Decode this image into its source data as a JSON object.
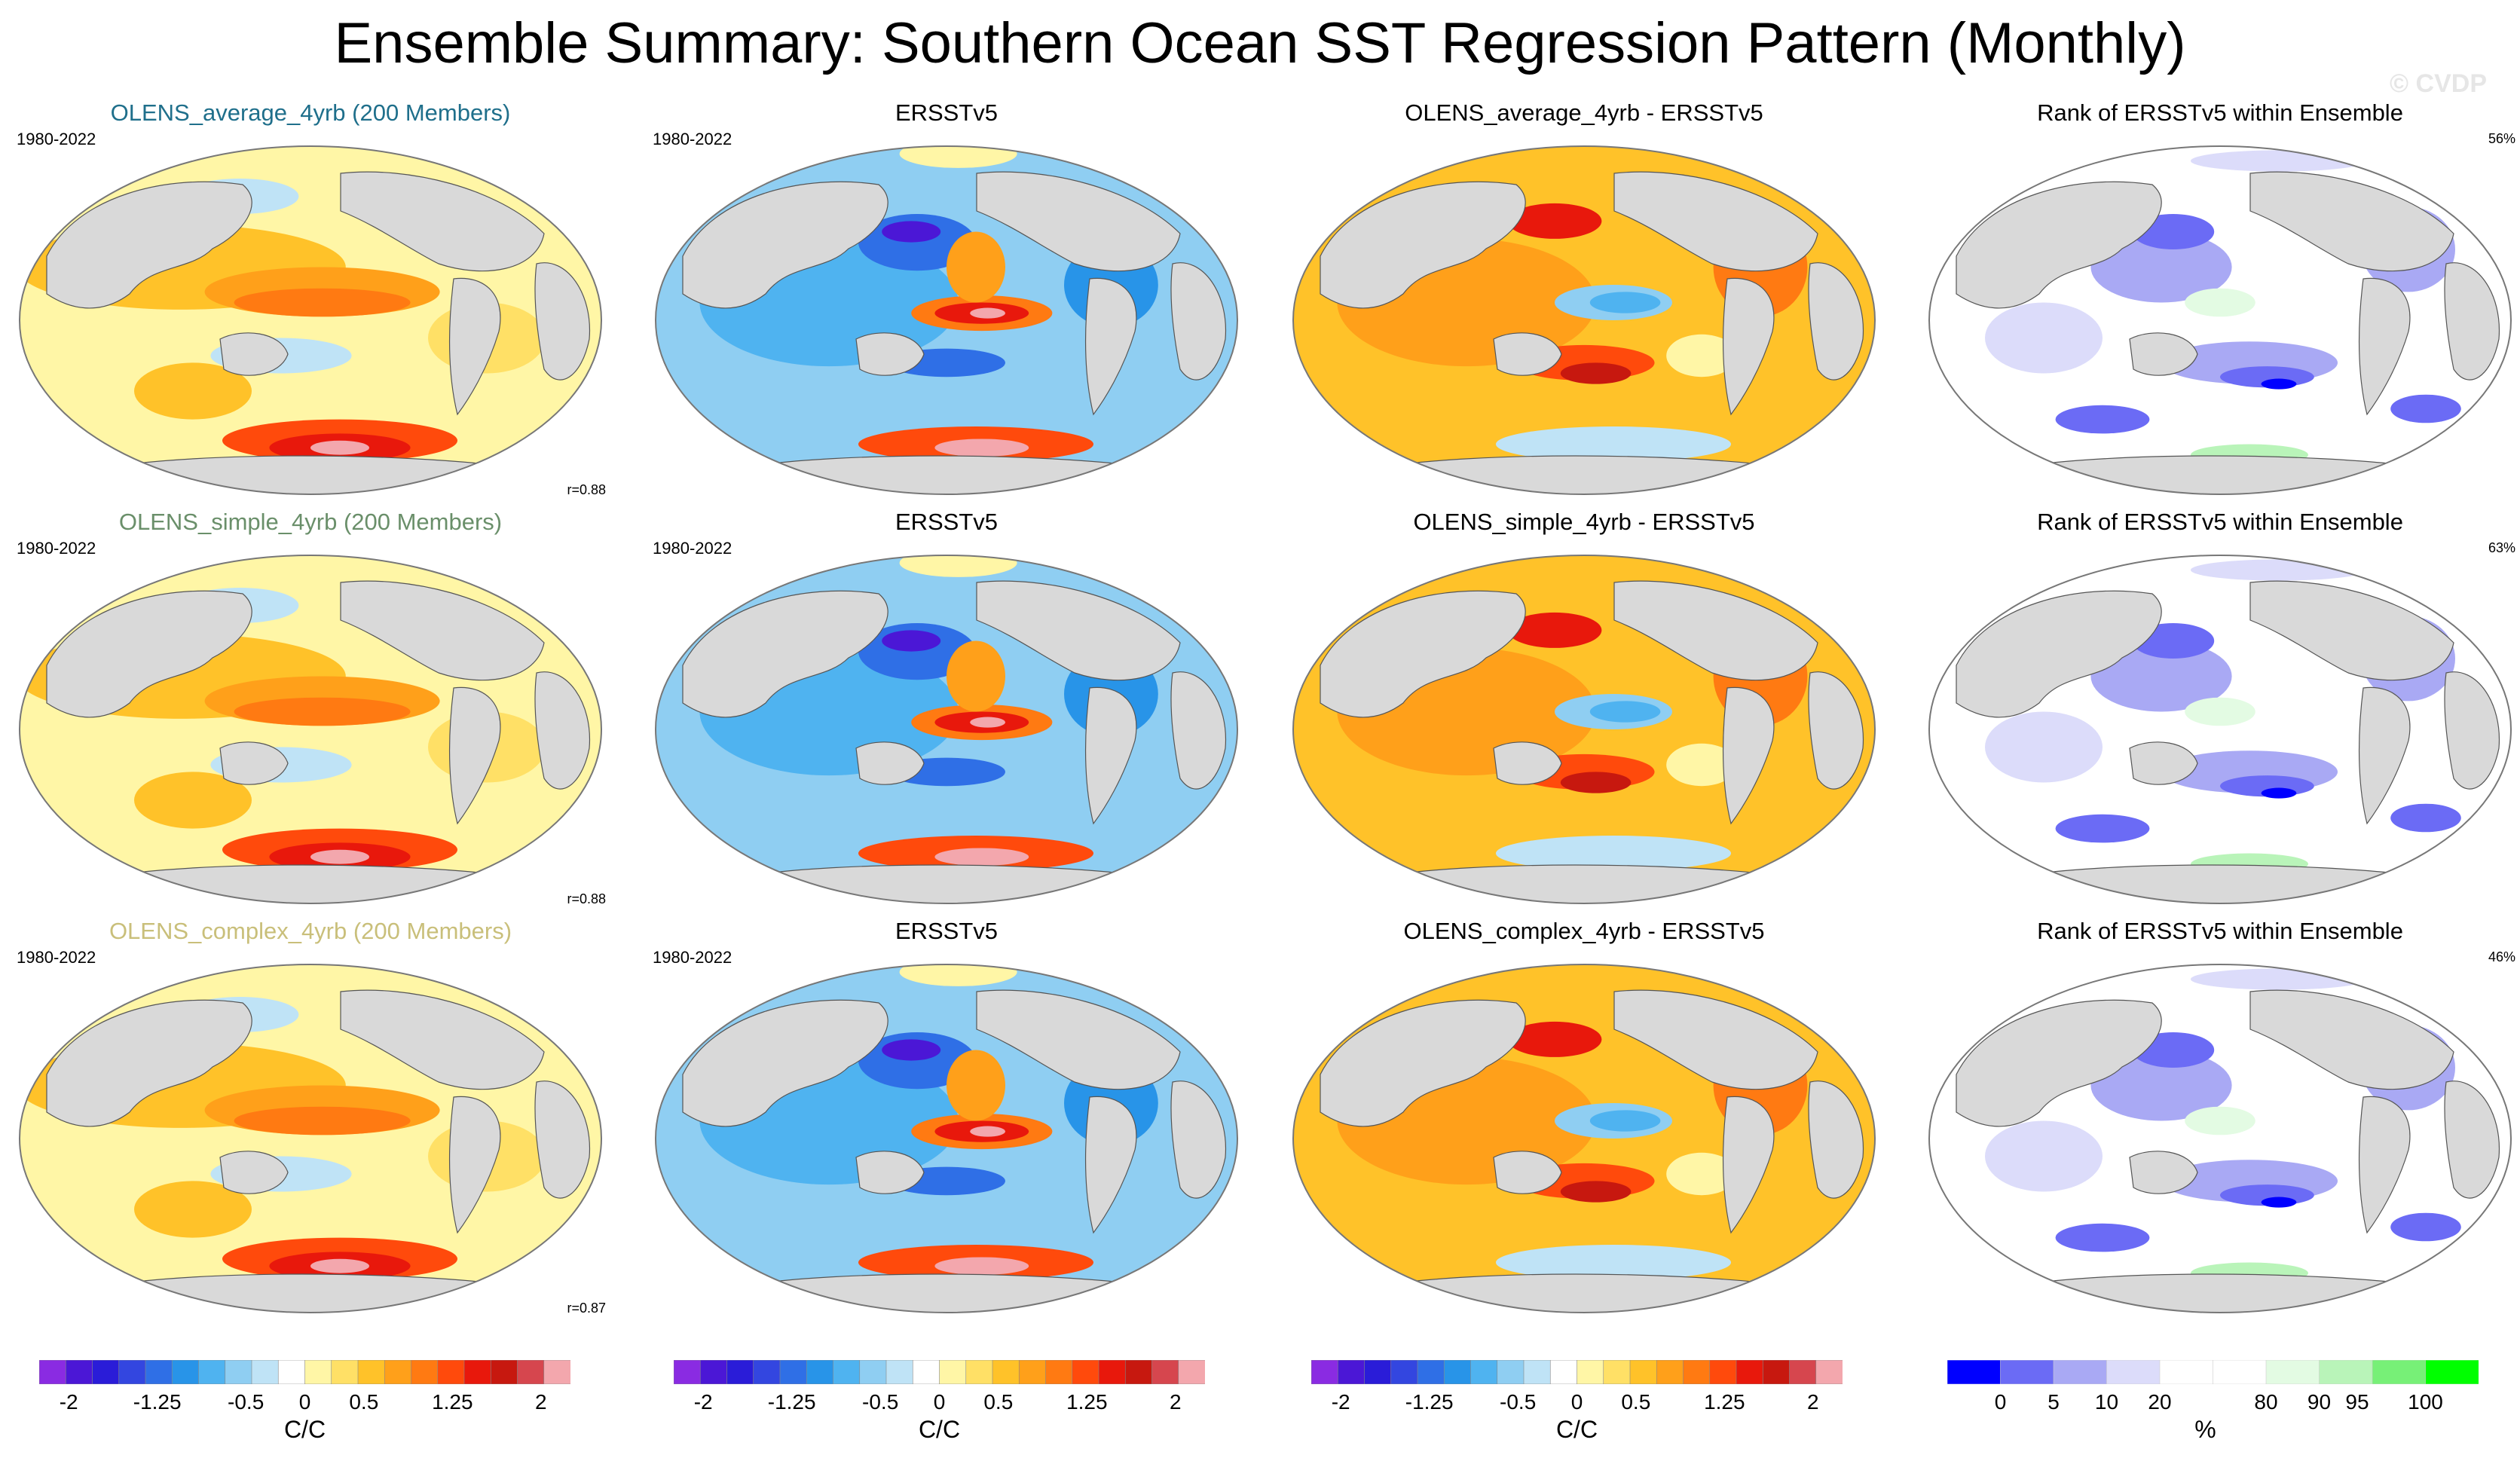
{
  "title": "Ensemble Summary: Southern Ocean SST Regression Pattern (Monthly)",
  "watermark": "© CVDP",
  "colors": {
    "avg_title": "#1f6f8b",
    "simple_title": "#6a8f6a",
    "complex_title": "#c9bf7a",
    "land": "#d9d9d9",
    "coast": "#555555"
  },
  "chart_data": {
    "type": "heatmap",
    "rows": [
      {
        "model_title": "OLENS_average_4yrb (200 Members)",
        "period": "1980-2022",
        "correlation": "r=0.88",
        "obs_title": "ERSSTv5",
        "obs_period": "1980-2022",
        "diff_title": "OLENS_average_4yrb - ERSSTv5",
        "rank_title": "Rank of ERSSTv5 within Ensemble",
        "rank_percent": "56%"
      },
      {
        "model_title": "OLENS_simple_4yrb (200 Members)",
        "period": "1980-2022",
        "correlation": "r=0.88",
        "obs_title": "ERSSTv5",
        "obs_period": "1980-2022",
        "diff_title": "OLENS_simple_4yrb - ERSSTv5",
        "rank_title": "Rank of ERSSTv5 within Ensemble",
        "rank_percent": "63%"
      },
      {
        "model_title": "OLENS_complex_4yrb (200 Members)",
        "period": "1980-2022",
        "correlation": "r=0.87",
        "obs_title": "ERSSTv5",
        "obs_period": "1980-2022",
        "diff_title": "OLENS_complex_4yrb - ERSSTv5",
        "rank_title": "Rank of ERSSTv5 within Ensemble",
        "rank_percent": "46%"
      }
    ],
    "sst_colorbar": {
      "unit": "C/C",
      "colors": [
        "#8a2be2",
        "#4b17d6",
        "#2a1cd8",
        "#3346e0",
        "#2f6fe6",
        "#2894e8",
        "#4fb3f0",
        "#8fcef2",
        "#bfe3f6",
        "#ffffff",
        "#fff6a6",
        "#ffe066",
        "#ffc229",
        "#ffa01a",
        "#ff7a12",
        "#ff4a0c",
        "#e8180c",
        "#c7180f",
        "#d6464e",
        "#f3a7ad"
      ],
      "ticks": [
        {
          "label": "-2",
          "value": -2
        },
        {
          "label": "-1.25",
          "value": -1.25
        },
        {
          "label": "-0.5",
          "value": -0.5
        },
        {
          "label": "0",
          "value": 0
        },
        {
          "label": "0.5",
          "value": 0.5
        },
        {
          "label": "1.25",
          "value": 1.25
        },
        {
          "label": "2",
          "value": 2
        }
      ],
      "range": [
        -2.25,
        2.25
      ]
    },
    "rank_colorbar": {
      "unit": "%",
      "colors": [
        "#0000ff",
        "#6b6bf5",
        "#a9a9f4",
        "#dcdcfa",
        "#ffffff",
        "#ffffff",
        "#e3fbe3",
        "#b9f4b9",
        "#77f077",
        "#00ff00"
      ],
      "ticks": [
        {
          "label": "0",
          "index": 1
        },
        {
          "label": "5",
          "index": 2
        },
        {
          "label": "10",
          "index": 3
        },
        {
          "label": "20",
          "index": 4
        },
        {
          "label": "80",
          "index": 6
        },
        {
          "label": "90",
          "index": 7
        },
        {
          "label": "95",
          "index": 8
        },
        {
          "label": "100",
          "index": 9
        }
      ]
    }
  }
}
